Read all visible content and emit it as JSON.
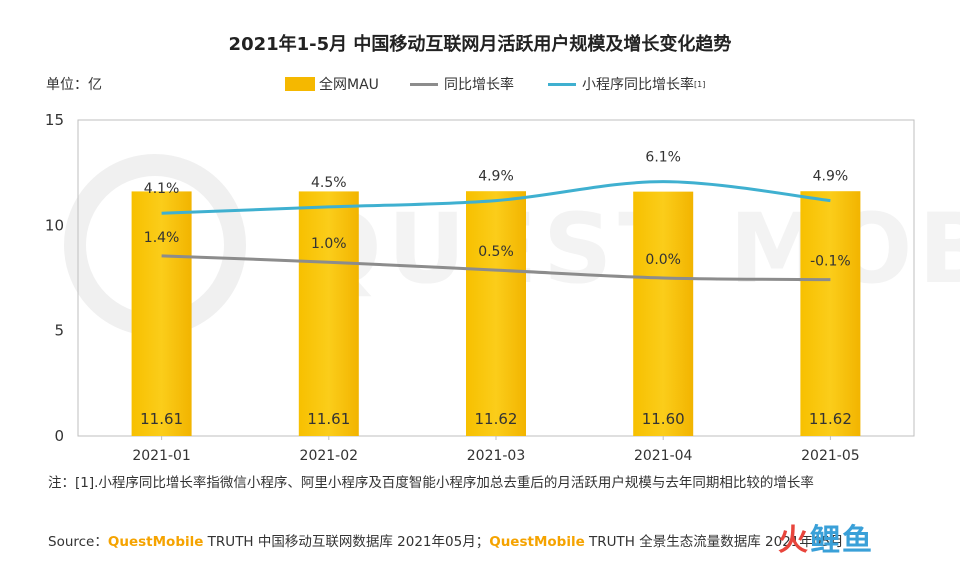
{
  "title": "2021年1-5月 中国移动互联网月活跃用户规模及增长变化趋势",
  "unit_label": "单位：亿",
  "legend": {
    "bar": "全网MAU",
    "line1": "同比增长率",
    "line2": "小程序同比增长率",
    "line2_sup": "[1]"
  },
  "note": "注：[1].小程序同比增长率指微信小程序、阿里小程序及百度智能小程序加总去重后的月活跃用户规模与去年同期相比较的增长率",
  "source": {
    "prefix": "Source：",
    "brand1": "QuestMobile",
    "text1": " TRUTH 中国移动互联网数据库 2021年05月；",
    "brand2": "QuestMobile",
    "text2": " TRUTH 全景生态流量数据库 2021年05月"
  },
  "watermark": "QUEST MOBILE",
  "logo": {
    "part1": "火",
    "part2": "鲤鱼"
  },
  "colors": {
    "bar": "#f5b800",
    "line1": "#8c8c8c",
    "line2": "#3fb0d0"
  },
  "chart_data": {
    "type": "bar",
    "categories": [
      "2021-01",
      "2021-02",
      "2021-03",
      "2021-04",
      "2021-05"
    ],
    "ylim": [
      0,
      15
    ],
    "yticks": [
      0,
      5,
      10,
      15
    ],
    "series": [
      {
        "name": "全网MAU",
        "type": "bar",
        "values": [
          11.61,
          11.61,
          11.62,
          11.6,
          11.62
        ],
        "labels": [
          "11.61",
          "11.61",
          "11.62",
          "11.60",
          "11.62"
        ]
      },
      {
        "name": "同比增长率",
        "type": "line",
        "values_pct": [
          1.4,
          1.0,
          0.5,
          0.0,
          -0.1
        ],
        "labels": [
          "1.4%",
          "1.0%",
          "0.5%",
          "0.0%",
          "-0.1%"
        ]
      },
      {
        "name": "小程序同比增长率",
        "type": "line",
        "values_pct": [
          4.1,
          4.5,
          4.9,
          6.1,
          4.9
        ],
        "labels": [
          "4.1%",
          "4.5%",
          "4.9%",
          "6.1%",
          "4.9%"
        ]
      }
    ]
  }
}
